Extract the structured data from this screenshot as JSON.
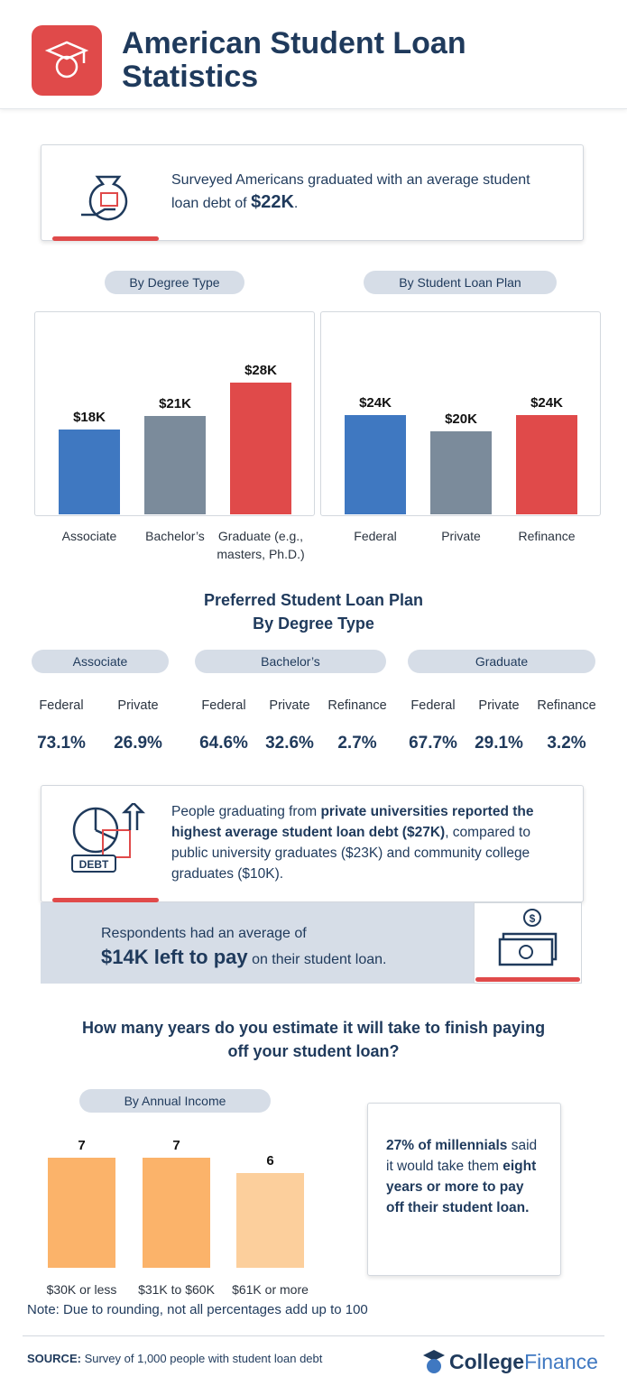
{
  "header": {
    "title": "American Student Loan Statistics"
  },
  "intro": {
    "text": "Surveyed Americans graduated with an average student loan debt of",
    "highlight": "$22K",
    "end": "."
  },
  "chart_data": [
    {
      "type": "bar",
      "title": "By Degree Type",
      "categories": [
        "Associate",
        "Bachelor’s",
        "Graduate (e.g., masters, Ph.D.)"
      ],
      "values": [
        18,
        21,
        28
      ],
      "value_labels": [
        "$18K",
        "$21K",
        "$28K"
      ],
      "colors": [
        "#3f78c1",
        "#7b8b9b",
        "#e04a4a"
      ]
    },
    {
      "type": "bar",
      "title": "By Student Loan Plan",
      "categories": [
        "Federal",
        "Private",
        "Refinance"
      ],
      "values": [
        24,
        20,
        24
      ],
      "value_labels": [
        "$24K",
        "$20K",
        "$24K"
      ],
      "colors": [
        "#3f78c1",
        "#7b8b9b",
        "#e04a4a"
      ]
    },
    {
      "type": "bar",
      "title": "By Annual Income",
      "categories": [
        "$30K or less",
        "$31K to $60K",
        "$61K or more"
      ],
      "values": [
        7,
        7,
        6
      ],
      "colors": [
        "#fbb36a",
        "#fbb36a",
        "#fccf9c"
      ]
    }
  ],
  "preferred_plan": {
    "title": [
      "Preferred Student Loan Plan",
      "By Degree Type"
    ],
    "groups": [
      {
        "name": "Associate",
        "plans": [
          "Federal",
          "Private"
        ],
        "shares": [
          "73.1%",
          "26.9%"
        ]
      },
      {
        "name": "Bachelor’s",
        "plans": [
          "Federal",
          "Private",
          "Refinance"
        ],
        "shares": [
          "64.6%",
          "32.6%",
          "2.7%"
        ]
      },
      {
        "name": "Graduate",
        "plans": [
          "Federal",
          "Private",
          "Refinance"
        ],
        "shares": [
          "67.7%",
          "29.1%",
          "3.2%"
        ]
      }
    ]
  },
  "private_callout": {
    "start": "People graduating from",
    "bold": "private universities reported the highest average student loan debt ($27K)",
    "end": ", compared to public university graduates ($23K) and community college graduates ($10K).",
    "icon_label": "DEBT"
  },
  "remaining_callout": {
    "start": "Respondents had an average of",
    "bold": "$14K left to pay",
    "end": "on their student loan."
  },
  "question": {
    "title": [
      "How many years do you estimate it will take to finish paying",
      "off your student loan?"
    ]
  },
  "millennials": {
    "bold1": "27% of millennials",
    "text": "said it would take them",
    "bold2": "eight years or more to pay off their student loan."
  },
  "note": "Note: Due to rounding, not all percentages add up to 100",
  "footer": {
    "source_label": "SOURCE:",
    "source": "Survey of 1,000 people with student loan debt",
    "brand_1": "College",
    "brand_2": "Finance"
  }
}
